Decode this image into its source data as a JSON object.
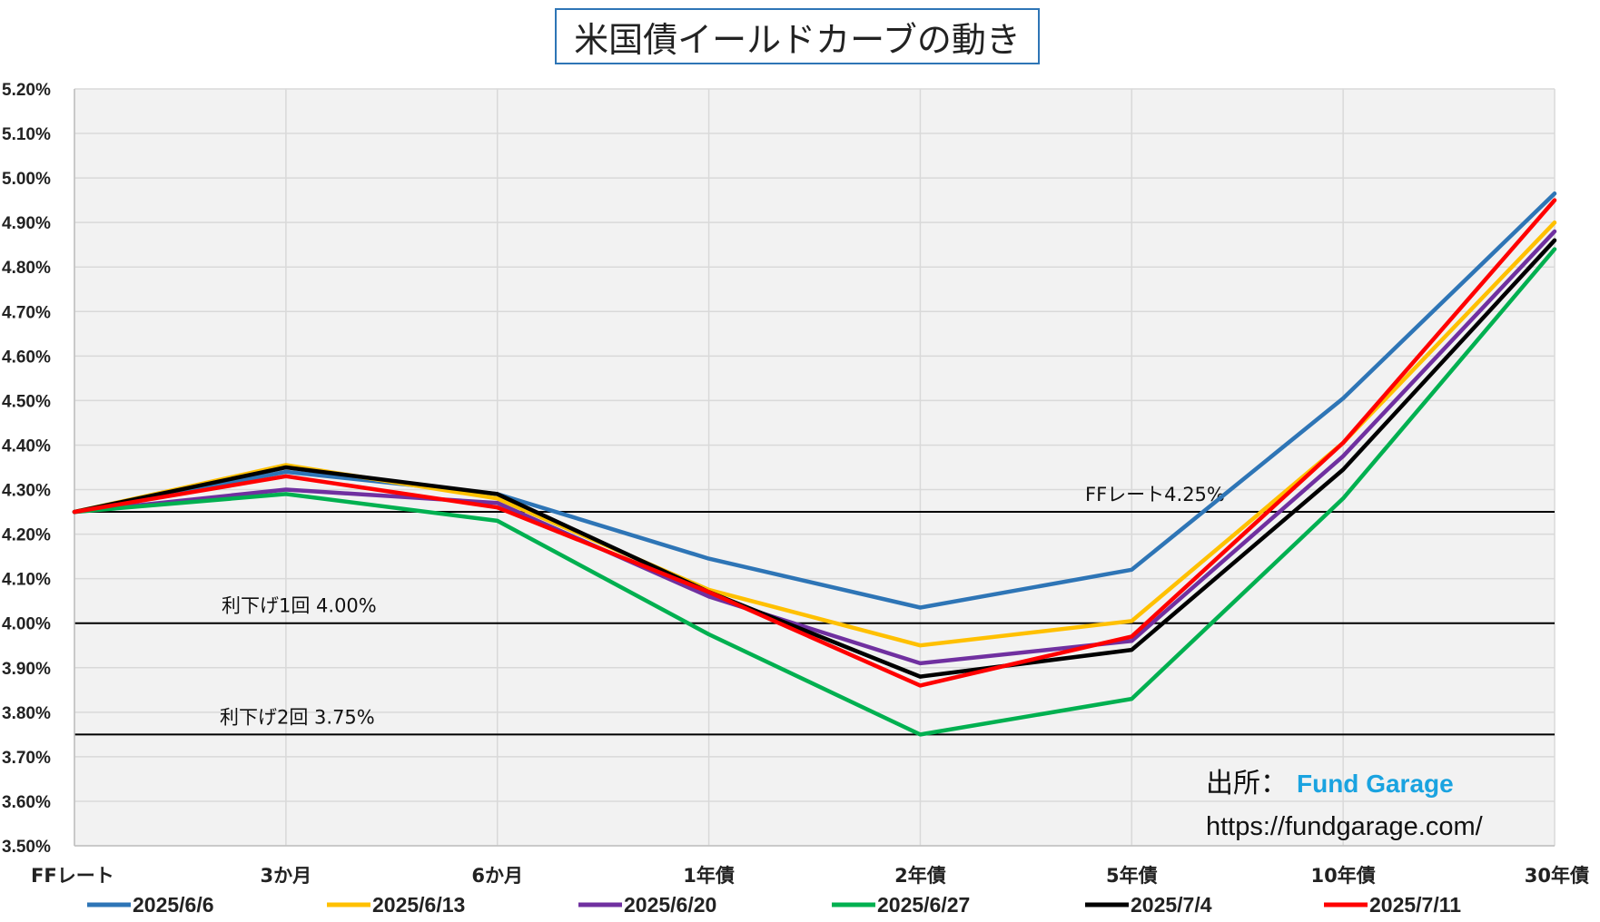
{
  "chart_data": {
    "type": "line",
    "title": "米国債イールドカーブの動き",
    "categories": [
      "FFレート",
      "3か月",
      "6か月",
      "1年債",
      "2年債",
      "5年債",
      "10年債",
      "30年債"
    ],
    "ylim": [
      3.5,
      5.2
    ],
    "ytick_step": 0.1,
    "ytick_format": "0.00%",
    "grid": true,
    "legend_position": "bottom",
    "series": [
      {
        "name": "2025/6/6",
        "color": "#2e75b6",
        "values": [
          4.25,
          4.34,
          4.29,
          4.145,
          4.035,
          4.12,
          4.505,
          4.965
        ]
      },
      {
        "name": "2025/6/13",
        "color": "#ffc000",
        "values": [
          4.25,
          4.355,
          4.28,
          4.075,
          3.95,
          4.005,
          4.405,
          4.9
        ]
      },
      {
        "name": "2025/6/20",
        "color": "#7030a0",
        "values": [
          4.25,
          4.3,
          4.27,
          4.06,
          3.91,
          3.96,
          4.375,
          4.88
        ]
      },
      {
        "name": "2025/6/27",
        "color": "#00b050",
        "values": [
          4.25,
          4.29,
          4.23,
          3.975,
          3.75,
          3.83,
          4.28,
          4.84
        ]
      },
      {
        "name": "2025/7/4",
        "color": "#000000",
        "values": [
          4.25,
          4.35,
          4.29,
          4.07,
          3.88,
          3.94,
          4.345,
          4.86
        ]
      },
      {
        "name": "2025/7/11",
        "color": "#ff0000",
        "values": [
          4.25,
          4.33,
          4.26,
          4.07,
          3.86,
          3.97,
          4.405,
          4.95
        ]
      }
    ],
    "reference_lines": [
      {
        "value": 4.25,
        "label": "FFレート4.25%",
        "color": "#000000"
      },
      {
        "value": 4.0,
        "label": "利下げ1回 4.00%",
        "color": "#000000"
      },
      {
        "value": 3.75,
        "label": "利下げ2回 3.75%",
        "color": "#000000"
      }
    ],
    "colors": {
      "plot_background": "#f2f2f2",
      "gridline": "#d9d9d9",
      "title_border": "#2e75b6",
      "brand": "#1aa3e0"
    }
  },
  "source": {
    "label": "出所：",
    "brand": "Fund Garage",
    "url": "https://fundgarage.com/"
  }
}
